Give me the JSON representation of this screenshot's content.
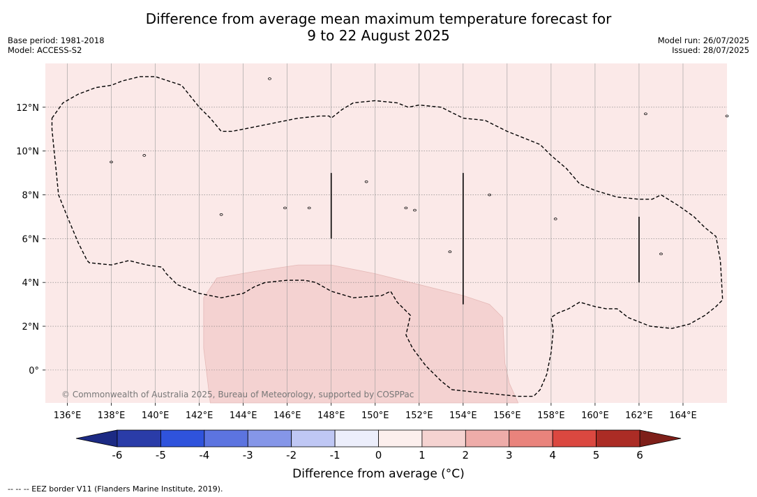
{
  "title": {
    "line1": "Difference from average mean maximum temperature forecast for",
    "line2": "9 to 22 August 2025"
  },
  "meta": {
    "base_period": "Base period: 1981-2018",
    "model": "Model: ACCESS-S2",
    "model_run": "Model run: 26/07/2025",
    "issued": "Issued: 28/07/2025"
  },
  "map": {
    "lon_range": [
      135,
      166
    ],
    "lat_range": [
      -1.5,
      14
    ],
    "background_color": "#fbe9e8",
    "anomaly_color": "#f4d2d1",
    "lon_ticks": [
      {
        "value": 136,
        "label": "136°E"
      },
      {
        "value": 138,
        "label": "138°E"
      },
      {
        "value": 140,
        "label": "140°E"
      },
      {
        "value": 142,
        "label": "142°E"
      },
      {
        "value": 144,
        "label": "144°E"
      },
      {
        "value": 146,
        "label": "146°E"
      },
      {
        "value": 148,
        "label": "148°E"
      },
      {
        "value": 150,
        "label": "150°E"
      },
      {
        "value": 152,
        "label": "152°E"
      },
      {
        "value": 154,
        "label": "154°E"
      },
      {
        "value": 156,
        "label": "156°E"
      },
      {
        "value": 158,
        "label": "158°E"
      },
      {
        "value": 160,
        "label": "160°E"
      },
      {
        "value": 162,
        "label": "162°E"
      },
      {
        "value": 164,
        "label": "164°E"
      }
    ],
    "lat_ticks": [
      {
        "value": 0,
        "label": "0°"
      },
      {
        "value": 2,
        "label": "2°N"
      },
      {
        "value": 4,
        "label": "4°N"
      },
      {
        "value": 6,
        "label": "6°N"
      },
      {
        "value": 8,
        "label": "8°N"
      },
      {
        "value": 10,
        "label": "10°N"
      },
      {
        "value": 12,
        "label": "12°N"
      }
    ],
    "warm_region": [
      [
        142.2,
        3.3
      ],
      [
        142.8,
        4.2
      ],
      [
        144.5,
        4.5
      ],
      [
        146.5,
        4.8
      ],
      [
        148.0,
        4.8
      ],
      [
        150.0,
        4.4
      ],
      [
        152.0,
        3.9
      ],
      [
        154.0,
        3.4
      ],
      [
        155.2,
        3.0
      ],
      [
        155.8,
        2.4
      ],
      [
        155.9,
        0.3
      ],
      [
        156.1,
        -0.6
      ],
      [
        156.5,
        -1.5
      ],
      [
        142.5,
        -1.5
      ],
      [
        142.2,
        1.0
      ]
    ],
    "eez_border": [
      [
        135.3,
        11.5
      ],
      [
        135.8,
        12.2
      ],
      [
        136.5,
        12.6
      ],
      [
        137.3,
        12.9
      ],
      [
        138.0,
        13.0
      ],
      [
        138.5,
        13.2
      ],
      [
        139.3,
        13.4
      ],
      [
        140.0,
        13.4
      ],
      [
        141.2,
        13.0
      ],
      [
        142.0,
        12.0
      ],
      [
        142.5,
        11.5
      ],
      [
        143.0,
        10.9
      ],
      [
        143.5,
        10.9
      ],
      [
        145.0,
        11.2
      ],
      [
        146.5,
        11.5
      ],
      [
        147.5,
        11.6
      ],
      [
        147.9,
        11.6
      ],
      [
        148.0,
        11.5
      ],
      [
        148.5,
        11.9
      ],
      [
        149.0,
        12.2
      ],
      [
        150.0,
        12.3
      ],
      [
        151.0,
        12.2
      ],
      [
        151.5,
        12.0
      ],
      [
        152.0,
        12.1
      ],
      [
        153.0,
        12.0
      ],
      [
        154.0,
        11.5
      ],
      [
        155.0,
        11.4
      ],
      [
        156.0,
        10.9
      ],
      [
        157.0,
        10.5
      ],
      [
        157.5,
        10.3
      ],
      [
        158.0,
        9.8
      ],
      [
        158.7,
        9.2
      ],
      [
        159.3,
        8.5
      ],
      [
        160.0,
        8.2
      ],
      [
        161.0,
        7.9
      ],
      [
        162.0,
        7.8
      ],
      [
        162.6,
        7.8
      ],
      [
        163.0,
        8.0
      ],
      [
        163.8,
        7.5
      ],
      [
        164.5,
        7.0
      ],
      [
        165.0,
        6.5
      ],
      [
        165.5,
        6.1
      ],
      [
        165.7,
        5.0
      ],
      [
        165.8,
        3.2
      ],
      [
        165.5,
        2.9
      ],
      [
        165.0,
        2.5
      ],
      [
        164.3,
        2.1
      ],
      [
        163.5,
        1.9
      ],
      [
        162.5,
        2.0
      ],
      [
        161.5,
        2.4
      ],
      [
        161.0,
        2.8
      ],
      [
        160.5,
        2.8
      ],
      [
        160.0,
        2.9
      ],
      [
        159.3,
        3.1
      ],
      [
        158.8,
        2.8
      ],
      [
        158.3,
        2.6
      ],
      [
        158.0,
        2.4
      ],
      [
        158.1,
        1.8
      ],
      [
        158.0,
        0.8
      ],
      [
        157.8,
        -0.2
      ],
      [
        157.5,
        -0.9
      ],
      [
        157.2,
        -1.2
      ],
      [
        156.5,
        -1.2
      ],
      [
        155.5,
        -1.1
      ],
      [
        154.5,
        -1.0
      ],
      [
        153.5,
        -0.9
      ],
      [
        153.0,
        -0.5
      ],
      [
        152.3,
        0.2
      ],
      [
        151.7,
        1.0
      ],
      [
        151.4,
        1.6
      ],
      [
        151.6,
        2.5
      ],
      [
        151.3,
        2.8
      ],
      [
        151.0,
        3.1
      ],
      [
        150.7,
        3.6
      ],
      [
        150.3,
        3.4
      ],
      [
        149.0,
        3.3
      ],
      [
        148.0,
        3.6
      ],
      [
        147.3,
        4.0
      ],
      [
        146.8,
        4.1
      ],
      [
        146.0,
        4.1
      ],
      [
        145.0,
        4.0
      ],
      [
        144.5,
        3.8
      ],
      [
        144.0,
        3.5
      ],
      [
        143.0,
        3.3
      ],
      [
        142.0,
        3.5
      ],
      [
        141.0,
        3.9
      ],
      [
        140.5,
        4.4
      ],
      [
        140.3,
        4.7
      ],
      [
        139.6,
        4.8
      ],
      [
        138.8,
        5.0
      ],
      [
        138.0,
        4.8
      ],
      [
        137.0,
        4.9
      ],
      [
        136.9,
        5.0
      ],
      [
        136.5,
        5.8
      ],
      [
        136.0,
        7.0
      ],
      [
        135.6,
        8.0
      ],
      [
        135.5,
        9.0
      ],
      [
        135.4,
        10.0
      ],
      [
        135.3,
        11.0
      ],
      [
        135.3,
        11.5
      ]
    ],
    "solid_lines": [
      [
        [
          148.0,
          9.0
        ],
        [
          148.0,
          6.0
        ]
      ],
      [
        [
          154.0,
          9.0
        ],
        [
          154.0,
          3.0
        ]
      ],
      [
        [
          162.0,
          7.0
        ],
        [
          162.0,
          4.0
        ]
      ]
    ],
    "islands": [
      [
        145.2,
        13.3
      ],
      [
        138.0,
        9.5
      ],
      [
        139.5,
        9.8
      ],
      [
        147.0,
        7.4
      ],
      [
        151.8,
        7.3
      ],
      [
        151.4,
        7.4
      ],
      [
        158.2,
        6.9
      ],
      [
        163.0,
        5.3
      ],
      [
        153.4,
        5.4
      ],
      [
        162.3,
        11.7
      ],
      [
        166.0,
        11.6
      ],
      [
        155.2,
        8.0
      ],
      [
        149.6,
        8.6
      ],
      [
        143.0,
        7.1
      ],
      [
        145.9,
        7.4
      ]
    ],
    "copyright": "© Commonwealth of Australia 2025, Bureau of Meteorology, supported by COSPPac"
  },
  "colorbar": {
    "ticks": [
      "-6",
      "-5",
      "-4",
      "-3",
      "-2",
      "-1",
      "0",
      "1",
      "2",
      "3",
      "4",
      "5",
      "6"
    ],
    "colors": [
      "#2a3ca8",
      "#2f53dc",
      "#5c74e0",
      "#8596e8",
      "#bfc7f4",
      "#eceefb",
      "#fcefed",
      "#f5d3d1",
      "#eeaca9",
      "#e9837c",
      "#db4840",
      "#ab2c25"
    ],
    "under_color": "#1c2a84",
    "over_color": "#7e1f19",
    "label": "Difference from average (°C)"
  },
  "footnote": "--  --  -- EEZ border V11 (Flanders Marine Institute, 2019)."
}
